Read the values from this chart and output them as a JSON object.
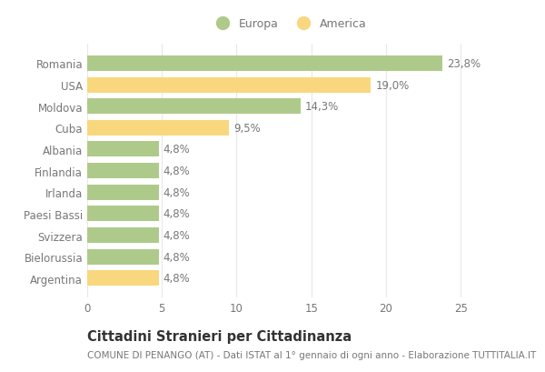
{
  "categories": [
    "Argentina",
    "Bielorussia",
    "Svizzera",
    "Paesi Bassi",
    "Irlanda",
    "Finlandia",
    "Albania",
    "Cuba",
    "Moldova",
    "USA",
    "Romania"
  ],
  "values": [
    4.8,
    4.8,
    4.8,
    4.8,
    4.8,
    4.8,
    4.8,
    9.5,
    14.3,
    19.0,
    23.8
  ],
  "colors": [
    "#F9D77E",
    "#AECA8A",
    "#AECA8A",
    "#AECA8A",
    "#AECA8A",
    "#AECA8A",
    "#AECA8A",
    "#F9D77E",
    "#AECA8A",
    "#F9D77E",
    "#AECA8A"
  ],
  "labels": [
    "4,8%",
    "4,8%",
    "4,8%",
    "4,8%",
    "4,8%",
    "4,8%",
    "4,8%",
    "9,5%",
    "14,3%",
    "19,0%",
    "23,8%"
  ],
  "xlim": [
    0,
    27
  ],
  "xticks": [
    0,
    5,
    10,
    15,
    20,
    25
  ],
  "legend_europa_color": "#AECA8A",
  "legend_america_color": "#F9D77E",
  "legend_europa_label": "Europa",
  "legend_america_label": "America",
  "title": "Cittadini Stranieri per Cittadinanza",
  "subtitle": "COMUNE DI PENANGO (AT) - Dati ISTAT al 1° gennaio di ogni anno - Elaborazione TUTTITALIA.IT",
  "bar_height": 0.72,
  "background_color": "#FFFFFF",
  "grid_color": "#E8E8E8",
  "label_fontsize": 8.5,
  "ytick_fontsize": 8.5,
  "xtick_fontsize": 8.5,
  "title_fontsize": 10.5,
  "subtitle_fontsize": 7.5,
  "text_color": "#777777"
}
